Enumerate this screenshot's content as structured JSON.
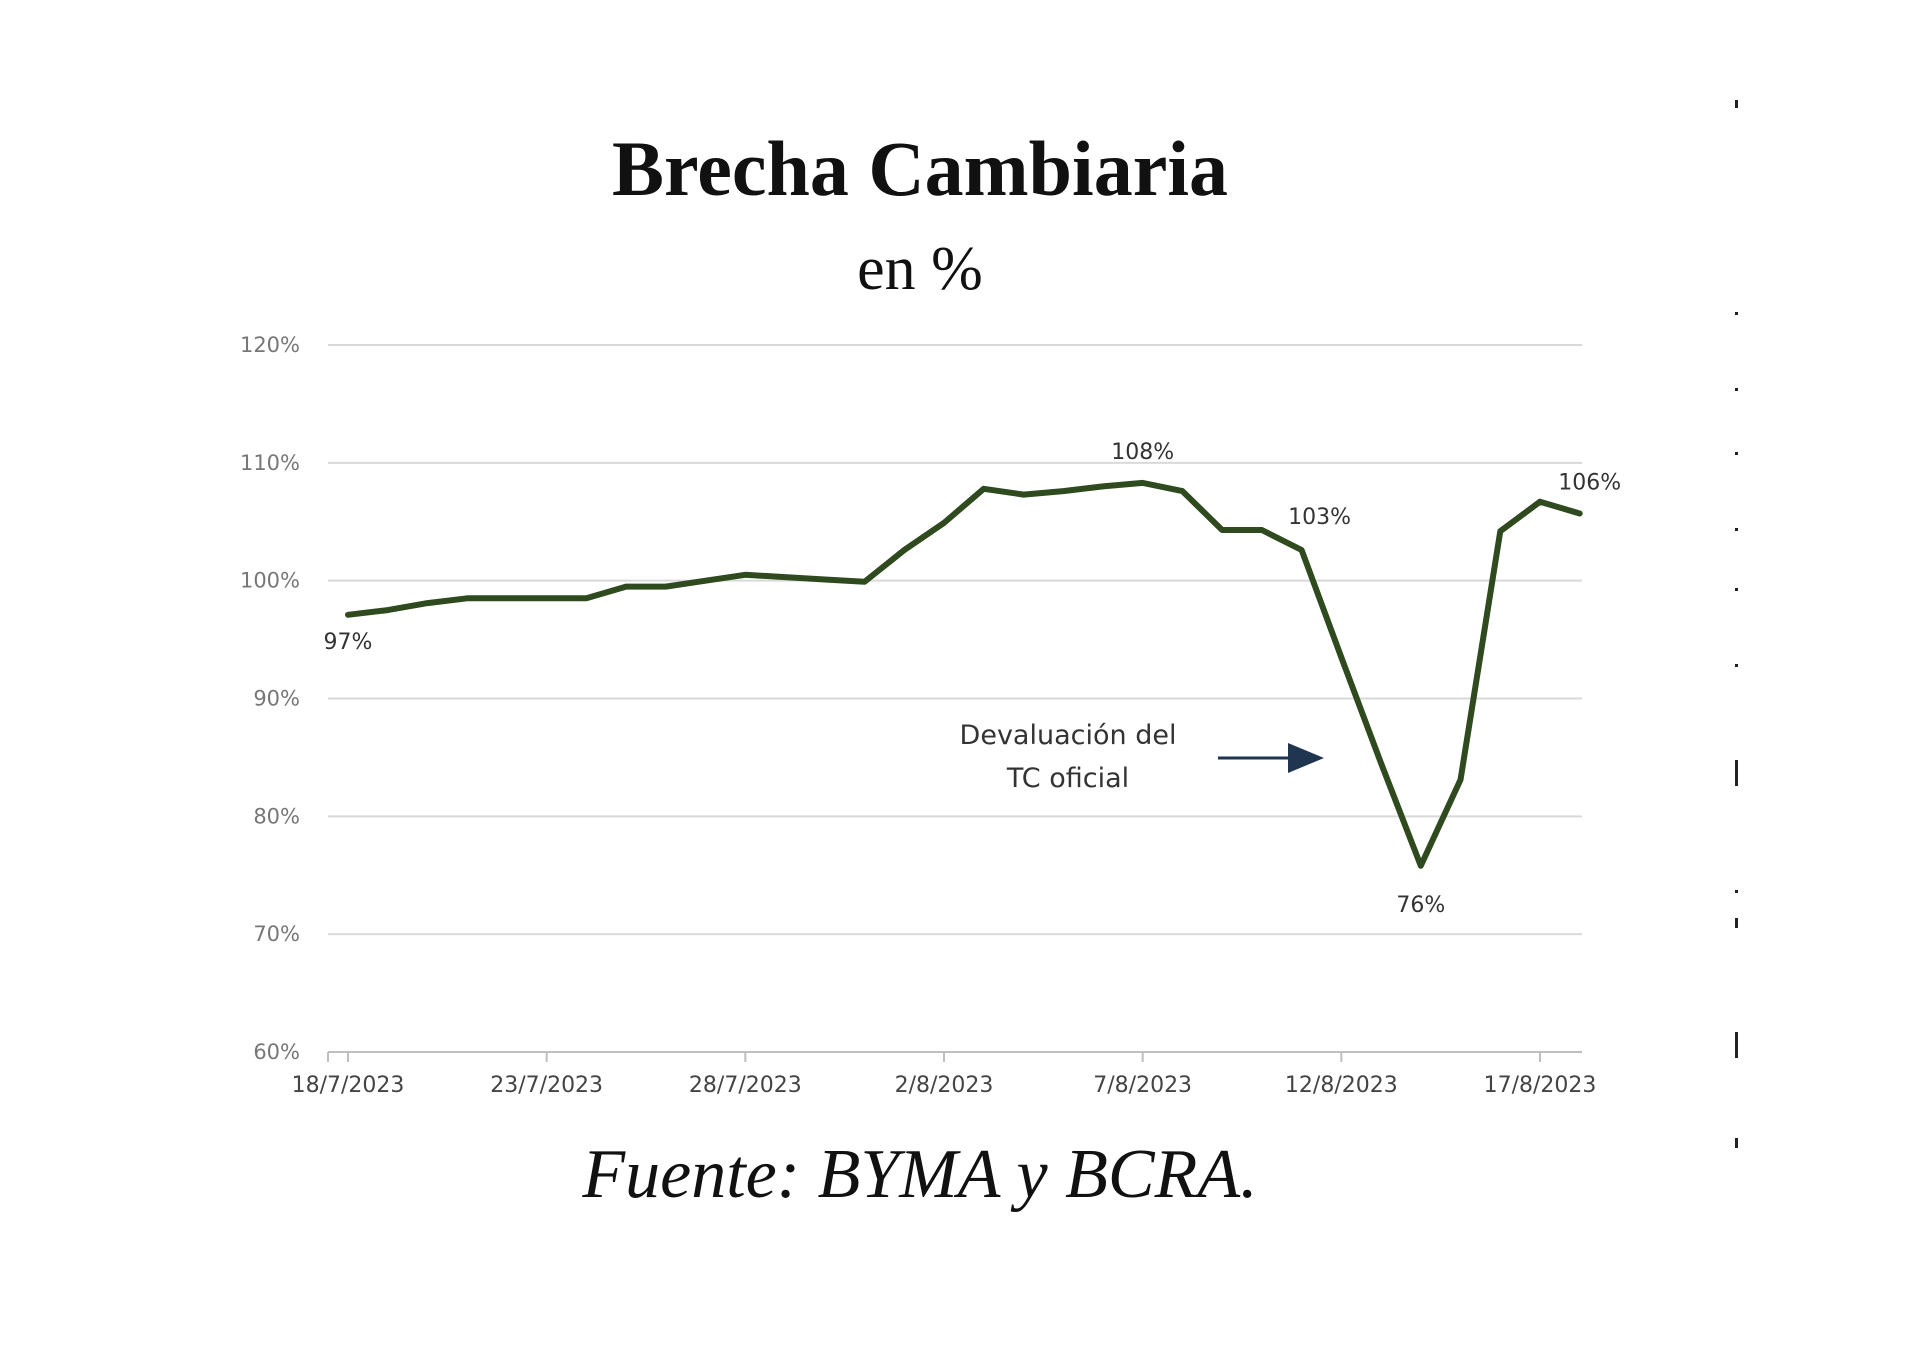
{
  "chart_data": {
    "type": "line",
    "title": "Brecha Cambiaria",
    "subtitle": "en %",
    "source": "Fuente: BYMA y BCRA.",
    "xlabel": "",
    "ylabel": "",
    "ylim": [
      60,
      120
    ],
    "yticks": [
      "120%",
      "110%",
      "100%",
      "90%",
      "80%",
      "70%",
      "60%"
    ],
    "yvalues": [
      120,
      110,
      100,
      90,
      80,
      70,
      60
    ],
    "xlim": [
      "18/7/2023",
      "19/8/2023"
    ],
    "xticks": [
      "18/7/2023",
      "23/7/2023",
      "28/7/2023",
      "2/8/2023",
      "7/8/2023",
      "12/8/2023",
      "17/8/2023"
    ],
    "grid": true,
    "line_color": "#2e4a1e",
    "series": [
      {
        "x": [
          "18/7/2023",
          "19/7/2023",
          "20/7/2023",
          "21/7/2023",
          "22/7/2023",
          "23/7/2023",
          "24/7/2023",
          "25/7/2023",
          "26/7/2023",
          "27/7/2023",
          "28/7/2023",
          "29/7/2023",
          "30/7/2023",
          "31/7/2023",
          "1/8/2023",
          "2/8/2023",
          "3/8/2023",
          "4/8/2023",
          "5/8/2023",
          "6/8/2023",
          "7/8/2023",
          "8/8/2023",
          "9/8/2023",
          "10/8/2023",
          "11/8/2023",
          "12/8/2023",
          "13/8/2023",
          "14/8/2023",
          "15/8/2023",
          "16/8/2023",
          "17/8/2023",
          "18/8/2023",
          "19/8/2023"
        ],
        "y": [
          97.1,
          97.5,
          98.1,
          98.5,
          98.5,
          98.5,
          98.5,
          99.5,
          99.5,
          100.0,
          100.5,
          100.3,
          100.1,
          99.9,
          102.6,
          104.9,
          107.8,
          107.3,
          107.6,
          108.0,
          108.3,
          107.6,
          104.3,
          104.3,
          102.6,
          93.5,
          84.5,
          75.8,
          83.1,
          104.2,
          106.7,
          105.7,
          null
        ]
      }
    ],
    "data_labels": [
      {
        "x": "18/7/2023",
        "text": "97%"
      },
      {
        "x": "7/8/2023",
        "text": "108%"
      },
      {
        "x": "11/8/2023",
        "text": "103%"
      },
      {
        "x": "14/8/2023",
        "text": "76%"
      },
      {
        "x": "18/8/2023",
        "text": "106%"
      }
    ],
    "annotation": {
      "lines": [
        "Devaluación del",
        "TC oficial"
      ],
      "arrow": "right"
    }
  }
}
